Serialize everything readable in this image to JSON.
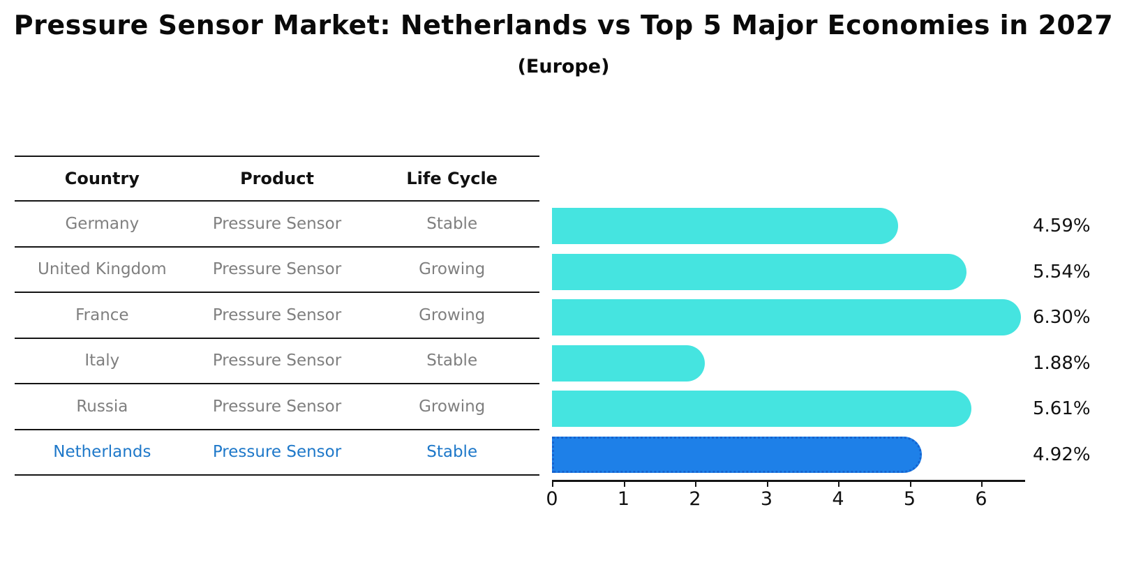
{
  "title": "Pressure Sensor Market: Netherlands vs Top 5 Major Economies in 2027",
  "subtitle": "(Europe)",
  "table": {
    "headers": [
      "Country",
      "Product",
      "Life Cycle"
    ]
  },
  "chart_data": {
    "type": "bar",
    "orientation": "horizontal",
    "title": "Pressure Sensor Market: Netherlands vs Top 5 Major Economies in 2027",
    "subtitle": "(Europe)",
    "categories": [
      "Germany",
      "United Kingdom",
      "France",
      "Italy",
      "Russia",
      "Netherlands"
    ],
    "values": [
      4.59,
      5.54,
      6.3,
      1.88,
      5.61,
      4.92
    ],
    "rows": [
      {
        "country": "Germany",
        "product": "Pressure Sensor",
        "life_cycle": "Stable",
        "value": 4.59,
        "label": "4.59%",
        "highlight": false
      },
      {
        "country": "United Kingdom",
        "product": "Pressure Sensor",
        "life_cycle": "Growing",
        "value": 5.54,
        "label": "5.54%",
        "highlight": false
      },
      {
        "country": "France",
        "product": "Pressure Sensor",
        "life_cycle": "Growing",
        "value": 6.3,
        "label": "6.30%",
        "highlight": false
      },
      {
        "country": "Italy",
        "product": "Pressure Sensor",
        "life_cycle": "Stable",
        "value": 1.88,
        "label": "1.88%",
        "highlight": false
      },
      {
        "country": "Russia",
        "product": "Pressure Sensor",
        "life_cycle": "Growing",
        "value": 5.61,
        "label": "5.61%",
        "highlight": false
      },
      {
        "country": "Netherlands",
        "product": "Pressure Sensor",
        "life_cycle": "Stable",
        "value": 4.92,
        "label": "4.92%",
        "highlight": true
      }
    ],
    "x_ticks": [
      "0",
      "1",
      "2",
      "3",
      "4",
      "5",
      "6"
    ],
    "xlim": [
      0,
      6.61
    ],
    "grid": false,
    "legend": "none",
    "colors": {
      "bar": "#45E4E0",
      "highlight_bar": "#1E80E8",
      "highlight_border": "#1563cf",
      "highlight_text": "#1e78c9",
      "cell_text": "#7f7f7f",
      "header_text": "#111111",
      "value_text": "#111111"
    }
  }
}
